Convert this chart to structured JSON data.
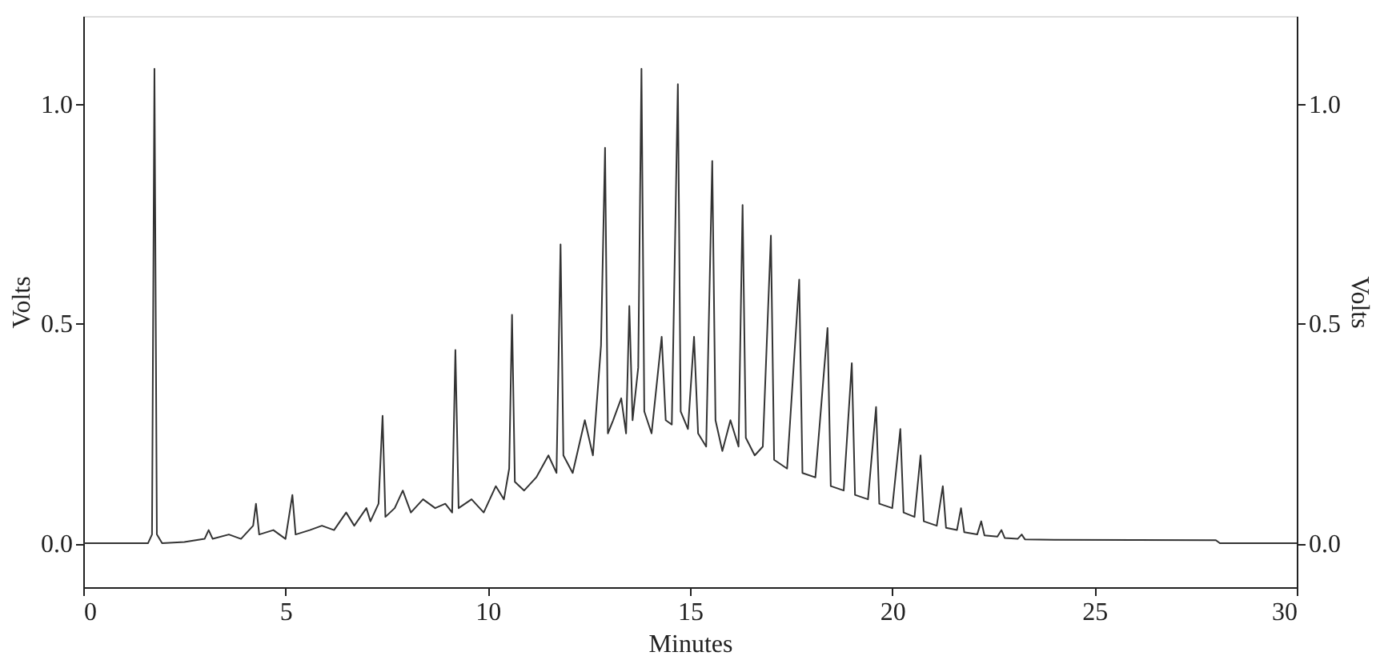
{
  "chart_data": {
    "type": "line",
    "xlabel": "Minutes",
    "ylabel": "Volts",
    "y2label": "Volts",
    "xlim": [
      0,
      30
    ],
    "xticks": [
      0,
      5,
      10,
      15,
      20,
      25,
      30
    ],
    "ylim": [
      -0.1,
      1.2
    ],
    "yticks": [
      {
        "value": 0,
        "label": "0.0"
      },
      {
        "value": 0.5,
        "label": "0.5"
      },
      {
        "value": 1,
        "label": "1.0"
      }
    ],
    "y2lim": [
      -0.1,
      1.2
    ],
    "y2ticks": [
      {
        "value": 0,
        "label": "0.0"
      },
      {
        "value": 0.5,
        "label": "0.5"
      },
      {
        "value": 1,
        "label": "1.0"
      }
    ],
    "grid": false,
    "line_style": "solid",
    "marker": "none",
    "series": [
      {
        "color": "#333333",
        "x": [
          0,
          1.6,
          1.7,
          1.76,
          1.82,
          1.95,
          2.5,
          3.0,
          3.1,
          3.2,
          3.6,
          3.9,
          4.2,
          4.27,
          4.35,
          4.7,
          5.0,
          5.17,
          5.25,
          5.6,
          5.9,
          6.2,
          6.5,
          6.7,
          7.0,
          7.1,
          7.3,
          7.4,
          7.47,
          7.7,
          7.9,
          8.1,
          8.4,
          8.7,
          8.95,
          9.12,
          9.2,
          9.28,
          9.6,
          9.9,
          10.2,
          10.4,
          10.53,
          10.6,
          10.67,
          10.9,
          11.2,
          11.5,
          11.7,
          11.8,
          11.87,
          12.1,
          12.4,
          12.6,
          12.8,
          12.9,
          12.97,
          13.1,
          13.3,
          13.42,
          13.5,
          13.58,
          13.72,
          13.8,
          13.87,
          14.05,
          14.3,
          14.4,
          14.55,
          14.7,
          14.77,
          14.95,
          15.1,
          15.2,
          15.4,
          15.55,
          15.63,
          15.8,
          16.0,
          16.2,
          16.3,
          16.38,
          16.6,
          16.8,
          17.0,
          17.08,
          17.4,
          17.7,
          17.78,
          18.1,
          18.4,
          18.48,
          18.8,
          19.0,
          19.08,
          19.4,
          19.6,
          19.68,
          20.0,
          20.2,
          20.28,
          20.55,
          20.7,
          20.78,
          21.1,
          21.25,
          21.33,
          21.6,
          21.7,
          21.78,
          22.1,
          22.2,
          22.28,
          22.6,
          22.7,
          22.78,
          23.1,
          23.2,
          23.28,
          24.0,
          28.0,
          28.1,
          30
        ],
        "values": [
          0,
          0,
          0.02,
          1.08,
          0.02,
          0,
          0.003,
          0.01,
          0.03,
          0.01,
          0.02,
          0.01,
          0.04,
          0.09,
          0.02,
          0.03,
          0.01,
          0.11,
          0.02,
          0.03,
          0.04,
          0.03,
          0.07,
          0.04,
          0.08,
          0.05,
          0.09,
          0.29,
          0.06,
          0.08,
          0.12,
          0.07,
          0.1,
          0.08,
          0.09,
          0.07,
          0.44,
          0.08,
          0.1,
          0.07,
          0.13,
          0.1,
          0.17,
          0.52,
          0.14,
          0.12,
          0.15,
          0.2,
          0.16,
          0.68,
          0.2,
          0.16,
          0.28,
          0.2,
          0.45,
          0.9,
          0.25,
          0.28,
          0.33,
          0.25,
          0.54,
          0.28,
          0.4,
          1.08,
          0.3,
          0.25,
          0.47,
          0.28,
          0.27,
          1.045,
          0.3,
          0.26,
          0.47,
          0.25,
          0.22,
          0.87,
          0.28,
          0.21,
          0.28,
          0.22,
          0.77,
          0.24,
          0.2,
          0.22,
          0.7,
          0.19,
          0.17,
          0.6,
          0.16,
          0.15,
          0.49,
          0.13,
          0.12,
          0.41,
          0.11,
          0.1,
          0.31,
          0.09,
          0.08,
          0.26,
          0.07,
          0.06,
          0.2,
          0.05,
          0.04,
          0.13,
          0.035,
          0.03,
          0.08,
          0.025,
          0.02,
          0.05,
          0.018,
          0.015,
          0.03,
          0.012,
          0.01,
          0.02,
          0.009,
          0.008,
          0.007,
          0,
          0
        ]
      }
    ]
  }
}
